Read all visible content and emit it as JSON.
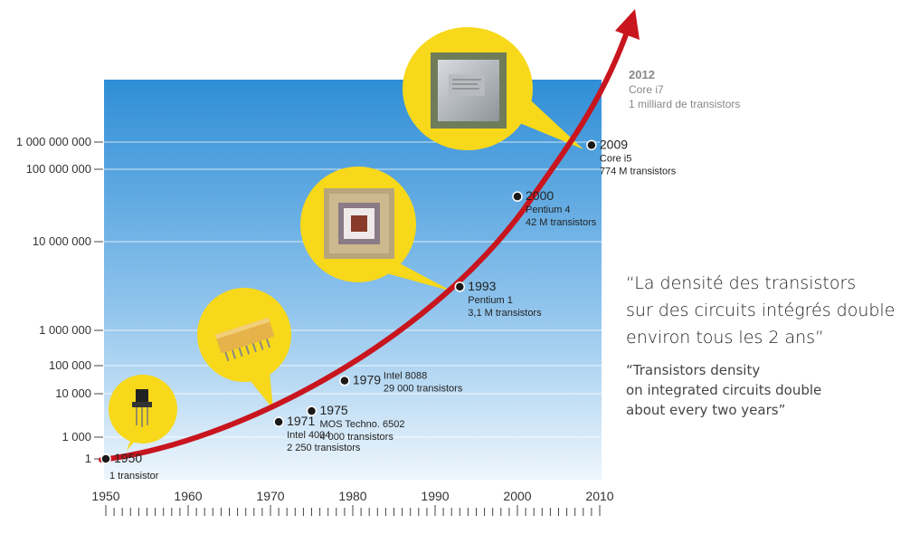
{
  "chart_data": {
    "type": "line",
    "y_scale": "log",
    "xlim": [
      1950,
      2010
    ],
    "x_ticks": [
      "1950",
      "1960",
      "1970",
      "1980",
      "1990",
      "2000",
      "2010"
    ],
    "y_ticks": [
      "1",
      "1 000",
      "10 000",
      "100 000",
      "1 000 000",
      "10 000 000",
      "100 000 000",
      "1 000 000 000"
    ],
    "series": [
      {
        "points": [
          {
            "year": 1950,
            "label": "1950",
            "chip": "",
            "count_label": "1 transistor",
            "value": 1
          },
          {
            "year": 1971,
            "label": "1971",
            "chip": "Intel 4004",
            "count_label": "2 250 transistors",
            "value": 2250
          },
          {
            "year": 1975,
            "label": "1975",
            "chip": "MOS Techno. 6502",
            "count_label": "4 000 transistors",
            "value": 4000
          },
          {
            "year": 1979,
            "label": "1979",
            "chip": "Intel 8088",
            "count_label": "29 000 transistors",
            "value": 29000
          },
          {
            "year": 1993,
            "label": "1993",
            "chip": "Pentium 1",
            "count_label": "3,1 M transistors",
            "value": 3100000
          },
          {
            "year": 2000,
            "label": "2000",
            "chip": "Pentium 4",
            "count_label": "42 M transistors",
            "value": 42000000
          },
          {
            "year": 2009,
            "label": "2009",
            "chip": "Core i5",
            "count_label": "774 M transistors",
            "value": 774000000
          }
        ]
      }
    ],
    "annotation": {
      "year": "2012",
      "chip": "Core i7",
      "count_label": "1 milliard de transistors",
      "value": 1000000000
    },
    "grid": true,
    "legend": "none"
  },
  "quote": {
    "fr": [
      "“La densité des transistors",
      "sur des circuits intégrés double",
      "environ tous les 2 ans”"
    ],
    "en": [
      "“Transistors density",
      "on integrated circuits double",
      "about every two years”"
    ]
  },
  "colors": {
    "curve": "#c8151e",
    "sky_top": "#2f8ed6",
    "sky_bottom": "#e6f2fb",
    "bubble": "#f7d81a",
    "marker": "#1a1a1a"
  },
  "icons": [
    "transistor-icon",
    "intel-4004-chip-icon",
    "pentium-chip-icon",
    "core-i7-chip-icon"
  ]
}
